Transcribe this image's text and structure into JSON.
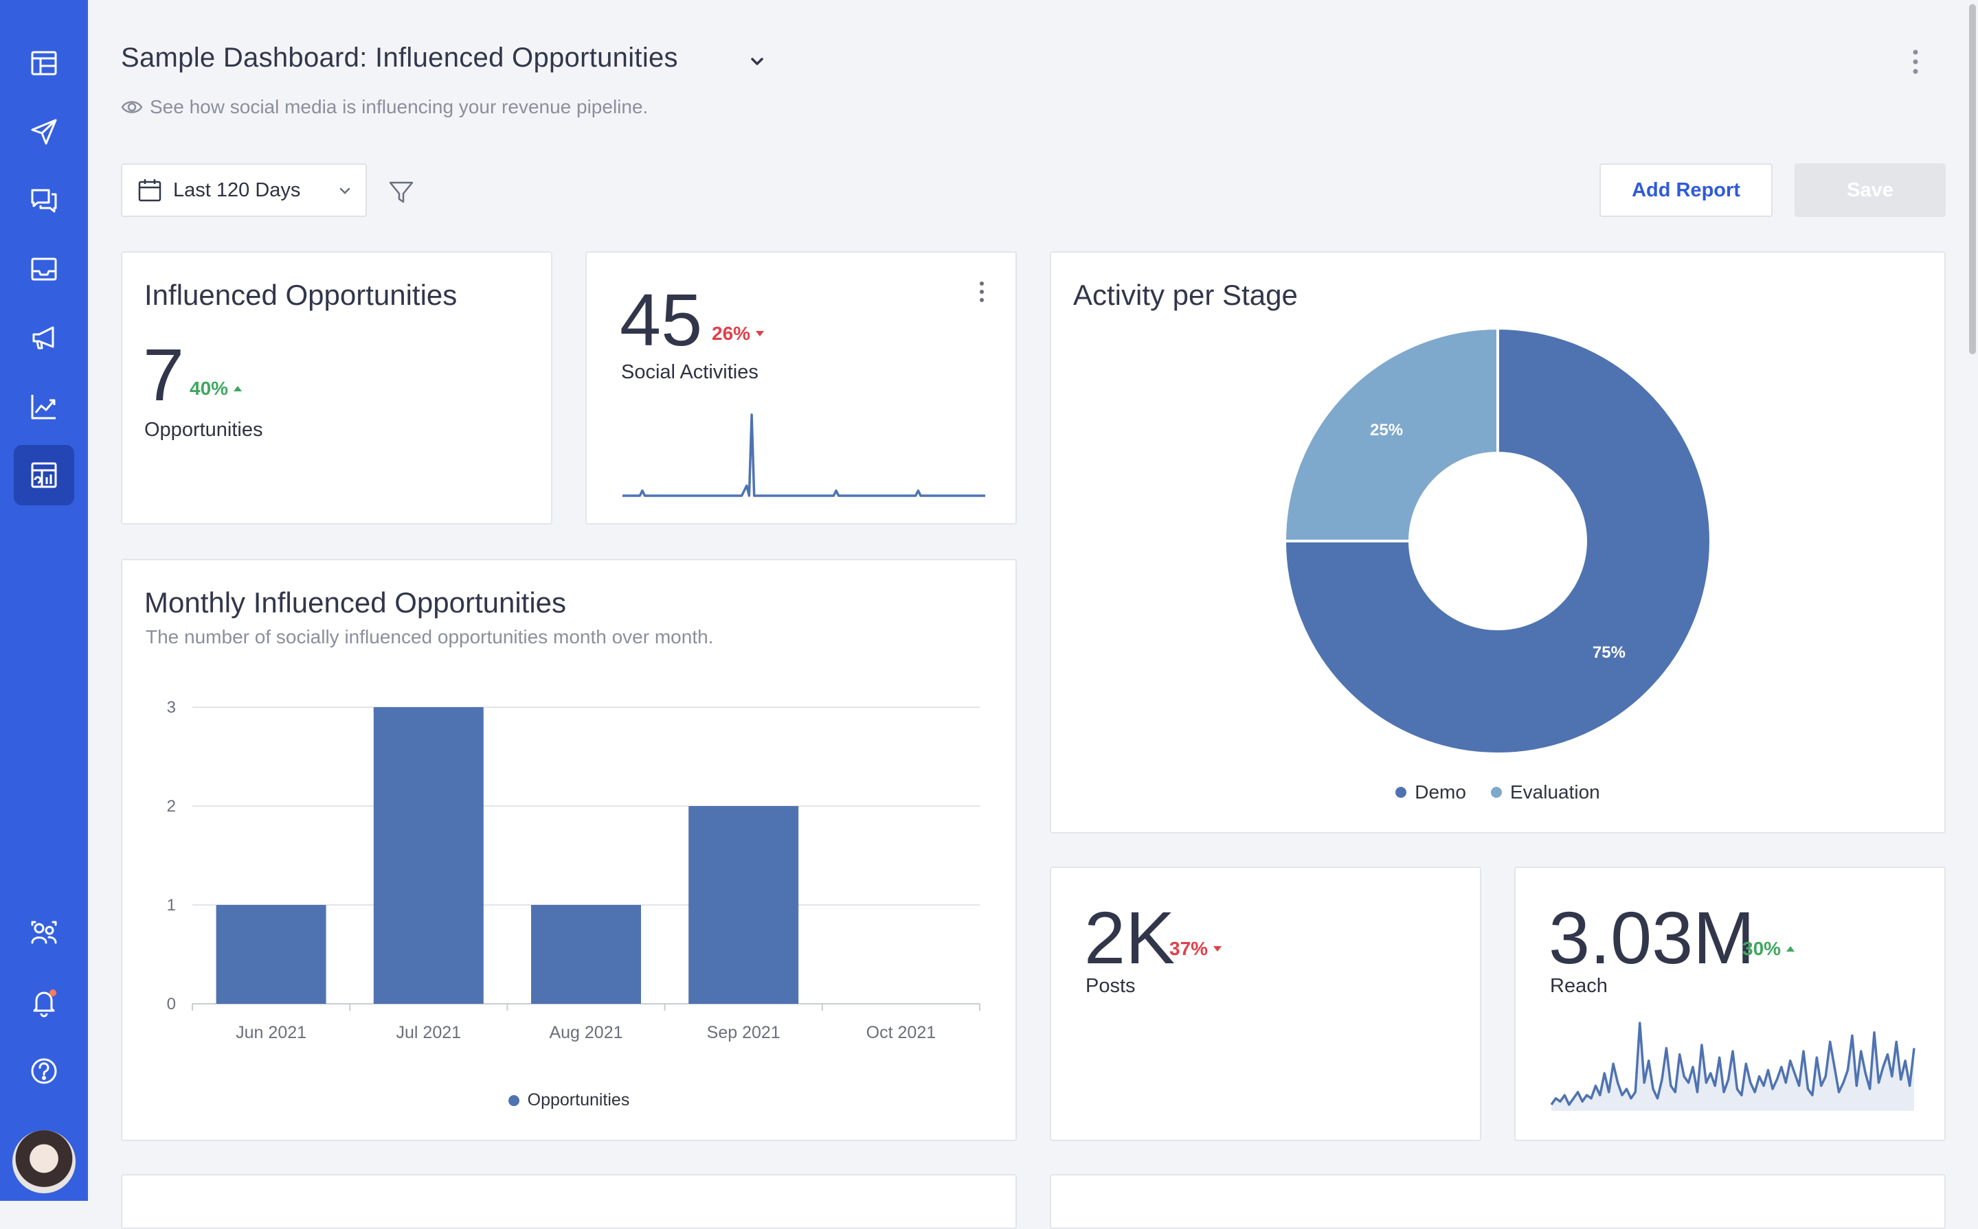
{
  "header": {
    "title": "Sample Dashboard: Influenced Opportunities",
    "subtitle": "See how social media is influencing your revenue pipeline."
  },
  "toolbar": {
    "date_range": "Last 120 Days",
    "add_report_label": "Add Report",
    "save_label": "Save"
  },
  "sidebar": {
    "items": [
      {
        "icon": "dashboard-layout-icon",
        "active": false
      },
      {
        "icon": "send-icon",
        "active": false
      },
      {
        "icon": "messages-icon",
        "active": false
      },
      {
        "icon": "inbox-icon",
        "active": false
      },
      {
        "icon": "megaphone-icon",
        "active": false
      },
      {
        "icon": "analytics-icon",
        "active": false
      },
      {
        "icon": "reports-icon",
        "active": true
      }
    ],
    "bottom": [
      "users-icon",
      "bell-icon",
      "help-icon"
    ]
  },
  "colors": {
    "sidebar": "#3460df",
    "primary_series": "#4f73b0",
    "secondary_series": "#7fa8cd",
    "positive": "#3fa75f",
    "negative": "#e0404a"
  },
  "cards": {
    "influenced": {
      "title": "Influenced Opportunities",
      "value": "7",
      "delta": "40%",
      "direction": "up",
      "label": "Opportunities"
    },
    "social": {
      "value": "45",
      "delta": "26%",
      "direction": "down",
      "label": "Social Activities"
    },
    "posts": {
      "value": "2K",
      "delta": "37%",
      "direction": "down",
      "label": "Posts"
    },
    "reach": {
      "value": "3.03M",
      "delta": "30%",
      "direction": "up",
      "label": "Reach"
    },
    "monthly": {
      "title": "Monthly Influenced Opportunities",
      "subtitle": "The number of socially influenced opportunities month over month."
    },
    "activity": {
      "title": "Activity per Stage"
    }
  },
  "chart_data": [
    {
      "type": "bar",
      "title": "Monthly Influenced Opportunities",
      "categories": [
        "Jun 2021",
        "Jul 2021",
        "Aug 2021",
        "Sep 2021",
        "Oct 2021"
      ],
      "series": [
        {
          "name": "Opportunities",
          "values": [
            1,
            3,
            1,
            2,
            0
          ]
        }
      ],
      "ylim": [
        0,
        3
      ],
      "yticks": [
        "0",
        "1",
        "2",
        "3"
      ],
      "grid": true,
      "legend": "bottom"
    },
    {
      "type": "pie",
      "title": "Activity per Stage",
      "donut": true,
      "slices": [
        {
          "name": "Demo",
          "value": 75,
          "label": "75%"
        },
        {
          "name": "Evaluation",
          "value": 25,
          "label": "25%"
        }
      ],
      "legend": "bottom"
    },
    {
      "type": "line",
      "title": "Social Activities",
      "values": [
        0,
        0,
        0,
        0,
        0,
        0,
        0,
        0,
        1,
        0,
        0,
        0,
        0,
        0,
        0,
        0,
        0,
        0,
        0,
        0,
        0,
        0,
        0,
        0,
        0,
        0,
        0,
        0,
        0,
        0,
        0,
        0,
        0,
        0,
        0,
        0,
        0,
        0,
        0,
        0,
        0,
        0,
        0,
        0,
        0,
        0,
        0,
        0,
        0,
        1,
        2,
        0,
        16,
        0,
        0,
        0,
        0,
        0,
        0,
        0,
        0,
        0,
        0,
        0,
        0,
        0,
        0,
        0,
        0,
        0,
        0,
        0,
        0,
        0,
        0,
        0,
        0,
        0,
        0,
        0,
        0,
        0,
        0,
        0,
        0,
        0,
        1,
        0,
        0,
        0,
        0,
        0,
        0,
        0,
        0,
        0,
        0,
        0,
        0,
        0,
        0,
        0,
        0,
        0,
        0,
        0,
        0,
        0,
        0,
        0,
        0,
        0,
        0,
        0,
        0,
        0,
        0,
        0,
        0,
        1,
        0,
        0,
        0,
        0,
        0,
        0,
        0,
        0,
        0,
        0,
        0,
        0,
        0,
        0,
        0,
        0,
        0,
        0,
        0,
        0,
        0,
        0,
        0,
        0,
        0,
        0,
        0
      ]
    },
    {
      "type": "area",
      "title": "Reach",
      "values": [
        2,
        4,
        3,
        5,
        2,
        4,
        6,
        3,
        5,
        4,
        8,
        5,
        12,
        6,
        15,
        9,
        5,
        7,
        4,
        6,
        28,
        9,
        16,
        7,
        4,
        10,
        20,
        8,
        6,
        18,
        11,
        9,
        14,
        6,
        21,
        9,
        12,
        8,
        17,
        6,
        10,
        19,
        7,
        5,
        15,
        9,
        6,
        11,
        8,
        13,
        7,
        10,
        14,
        9,
        16,
        12,
        8,
        19,
        7,
        5,
        17,
        8,
        11,
        22,
        14,
        6,
        9,
        13,
        24,
        8,
        19,
        12,
        7,
        25,
        9,
        14,
        18,
        11,
        22,
        10,
        16,
        8,
        20
      ]
    }
  ]
}
